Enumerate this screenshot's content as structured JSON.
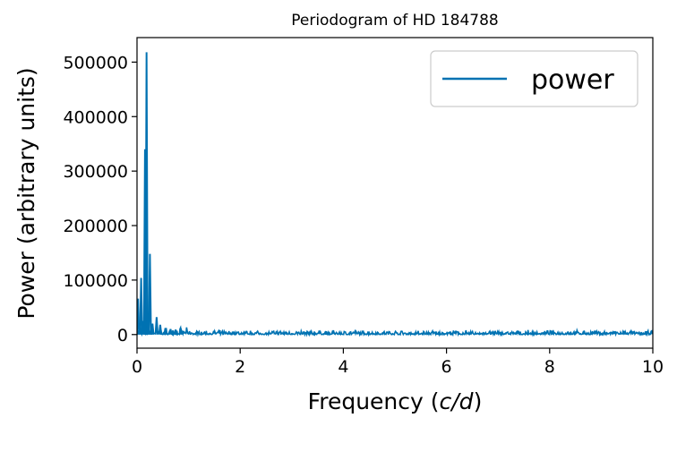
{
  "chart_data": {
    "type": "line",
    "title": "Periodogram of HD 184788",
    "xlabel": "Frequency",
    "xlabel_unit": "c/d",
    "ylabel": "Power (arbitrary units)",
    "xlim": [
      0,
      10
    ],
    "ylim": [
      -25000,
      545000
    ],
    "xticks": [
      0,
      2,
      4,
      6,
      8,
      10
    ],
    "yticks": [
      0,
      100000,
      200000,
      300000,
      400000,
      500000
    ],
    "grid": false,
    "legend_position": "top-right",
    "series": [
      {
        "name": "power",
        "color": "#0072b2",
        "peaks": [
          {
            "x": 0.02,
            "y": 66000
          },
          {
            "x": 0.06,
            "y": 20000
          },
          {
            "x": 0.08,
            "y": 104000
          },
          {
            "x": 0.12,
            "y": 25000
          },
          {
            "x": 0.155,
            "y": 340000
          },
          {
            "x": 0.165,
            "y": 60000
          },
          {
            "x": 0.185,
            "y": 518000
          },
          {
            "x": 0.21,
            "y": 30000
          },
          {
            "x": 0.25,
            "y": 148000
          },
          {
            "x": 0.3,
            "y": 20000
          },
          {
            "x": 0.38,
            "y": 32000
          },
          {
            "x": 0.45,
            "y": 18000
          },
          {
            "x": 0.55,
            "y": 12000
          },
          {
            "x": 0.65,
            "y": 10000
          },
          {
            "x": 0.75,
            "y": 9000
          },
          {
            "x": 0.85,
            "y": 11000
          }
        ],
        "noise_floor": 6000
      }
    ]
  }
}
